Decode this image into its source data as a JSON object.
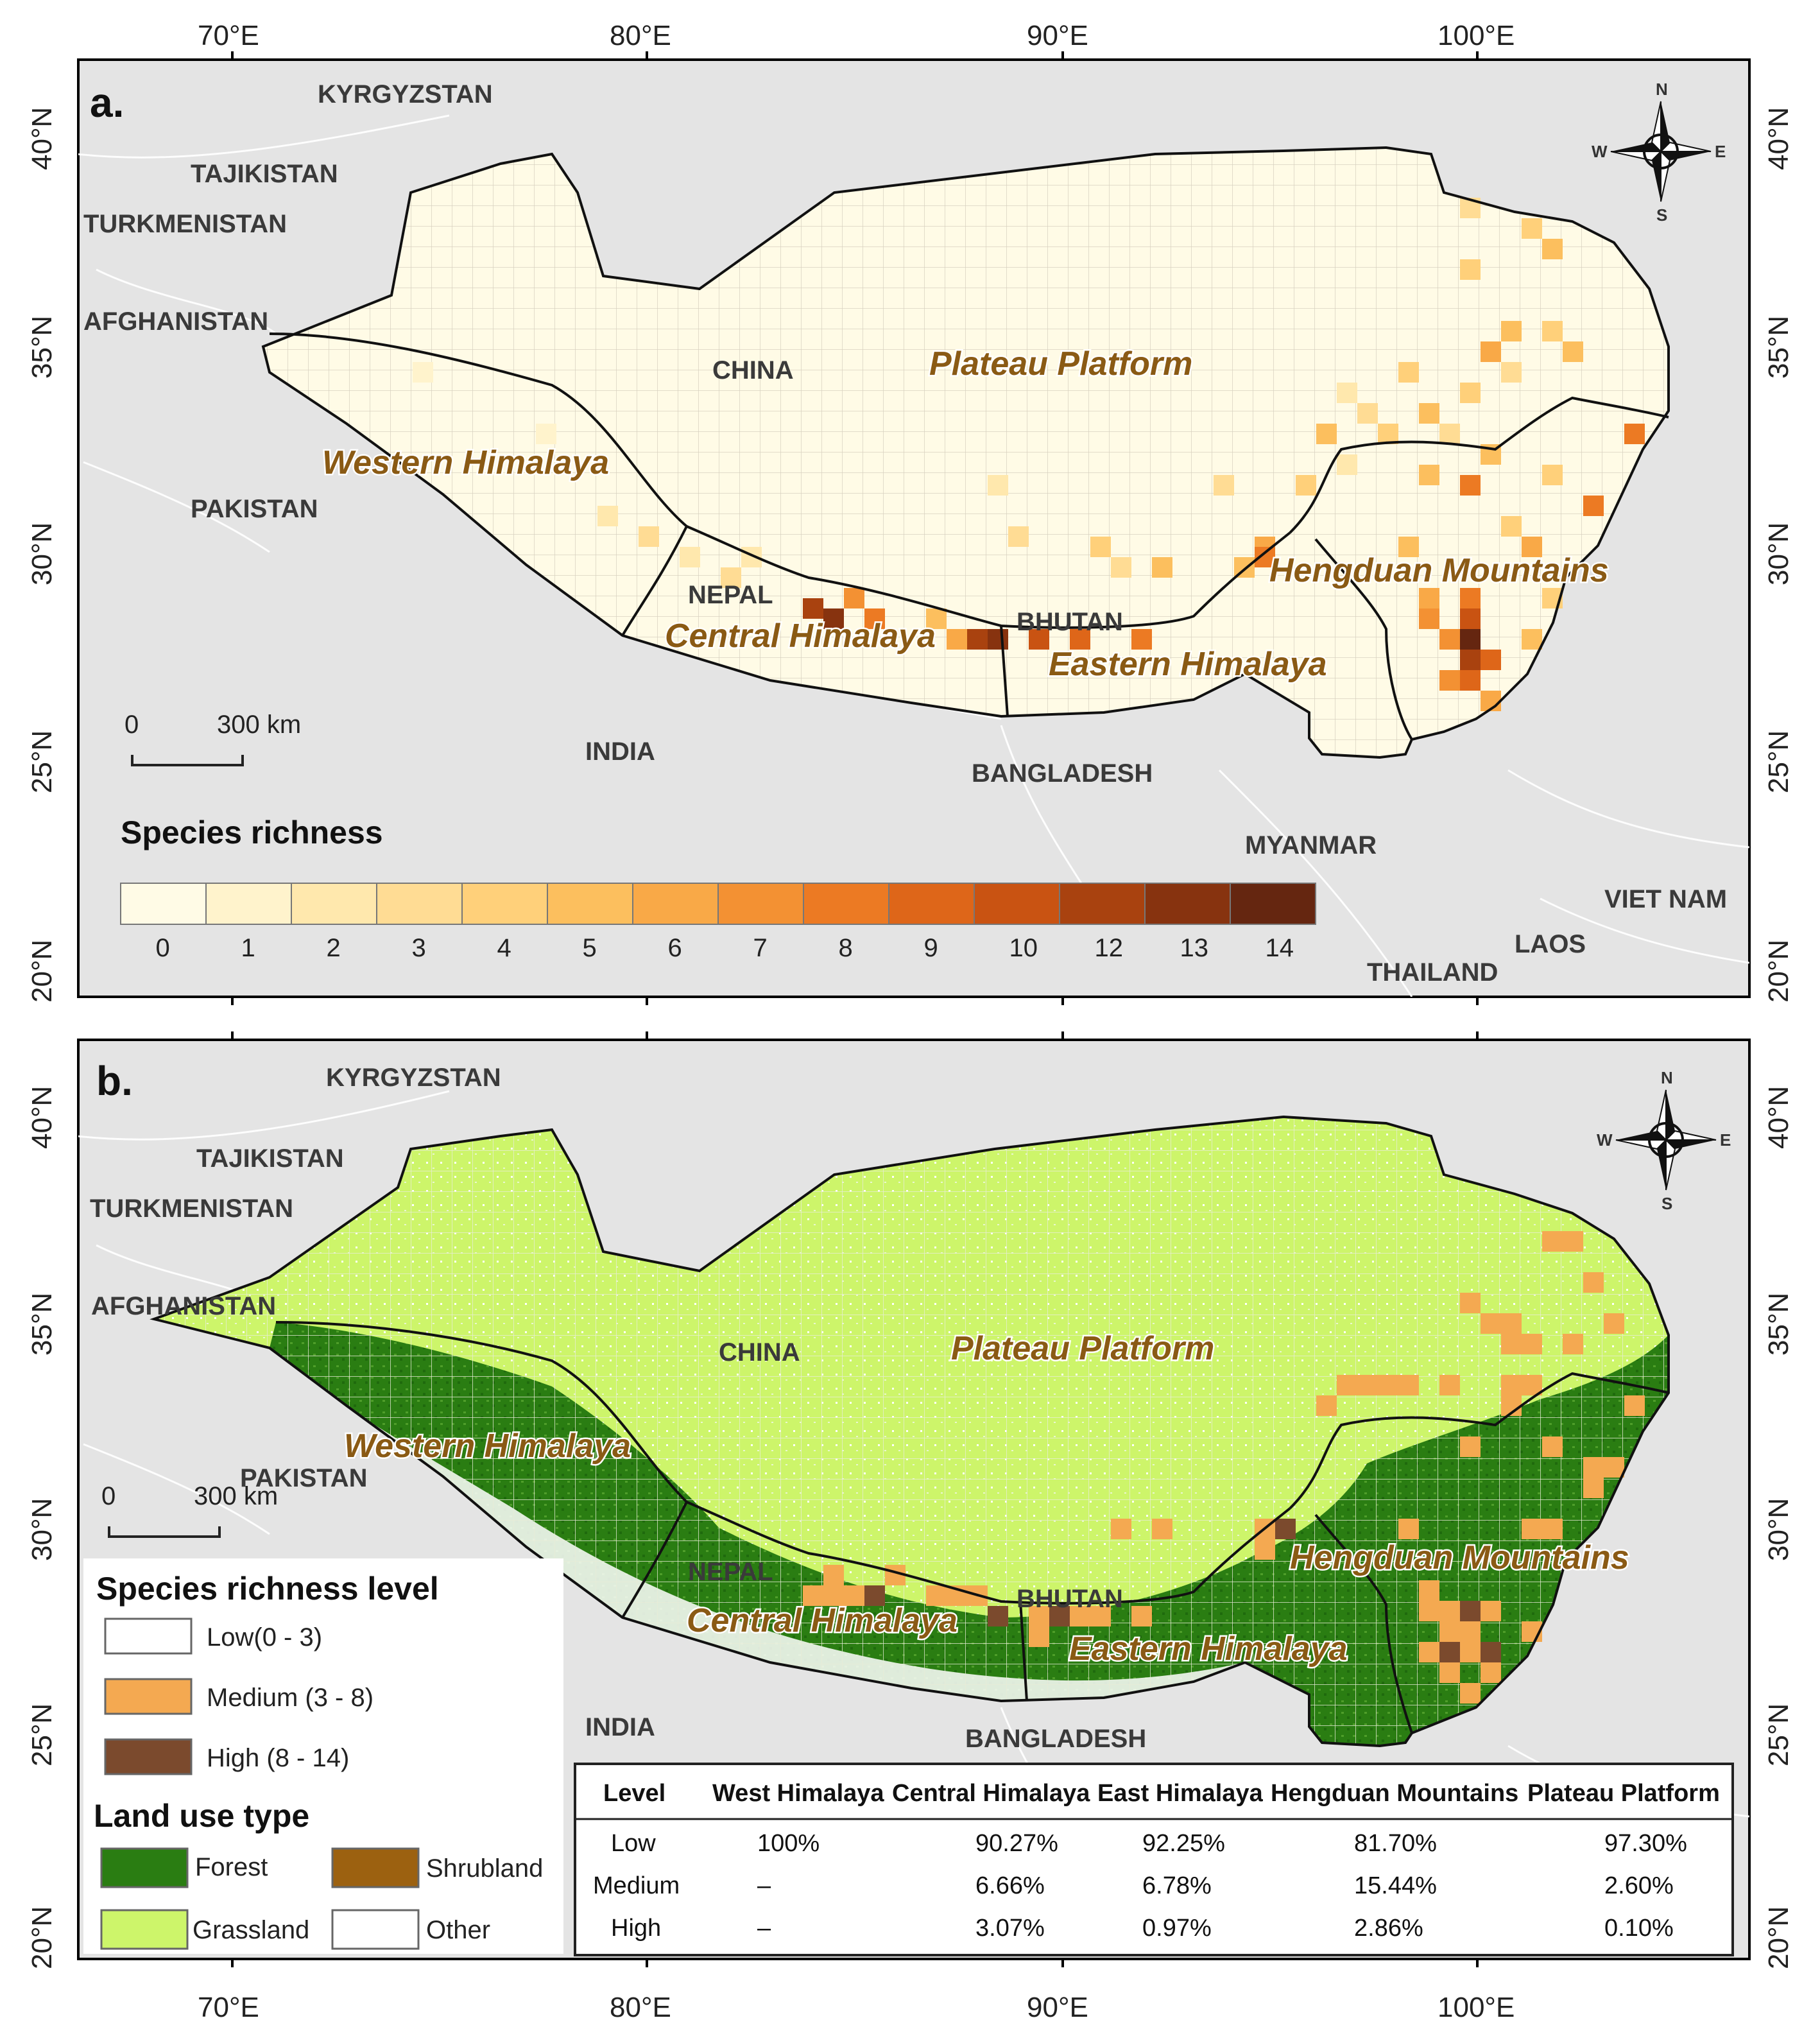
{
  "panels": [
    {
      "label": "a.",
      "legend_title": "Species richness",
      "legend_values": [
        "0",
        "1",
        "2",
        "3",
        "4",
        "5",
        "6",
        "7",
        "8",
        "9",
        "10",
        "12",
        "13",
        "14"
      ]
    },
    {
      "label": "b.",
      "richness_legend_title": "Species richness level",
      "richness_levels": [
        {
          "label": "Low(0 - 3)",
          "color": "#ffffff"
        },
        {
          "label": "Medium (3 - 8)",
          "color": "#f4a951"
        },
        {
          "label": "High (8 - 14)",
          "color": "#7b4a2d"
        }
      ],
      "landuse_title": "Land use type",
      "landuse": [
        {
          "label": "Forest",
          "color": "#2a7d12"
        },
        {
          "label": "Shrubland",
          "color": "#9c6110"
        },
        {
          "label": "Grassland",
          "color": "#cdf56a"
        },
        {
          "label": "Other",
          "color": "#ffffff"
        }
      ]
    }
  ],
  "top_axis_labels": [
    "70°E",
    "80°E",
    "90°E",
    "100°E"
  ],
  "bottom_axis_labels": [
    "70°E",
    "80°E",
    "90°E",
    "100°E"
  ],
  "lat_labels": [
    "40°N",
    "35°N",
    "30°N",
    "25°N",
    "20°N"
  ],
  "countries": {
    "kyrgyzstan": "KYRGYZSTAN",
    "tajikistan": "TAJIKISTAN",
    "turkmenistan": "TURKMENISTAN",
    "afghanistan": "AFGHANISTAN",
    "pakistan": "PAKISTAN",
    "china": "CHINA",
    "nepal": "NEPAL",
    "bhutan": "BHUTAN",
    "india": "INDIA",
    "bangladesh": "BANGLADESH",
    "myanmar": "MYANMAR",
    "viet_nam": "VIET NAM",
    "laos": "LAOS",
    "thailand": "THAILAND"
  },
  "regions": {
    "plateau": "Plateau Platform",
    "western": "Western Himalaya",
    "central": "Central Himalaya",
    "eastern": "Eastern Himalaya",
    "hengduan": "Hengduan Mountains"
  },
  "scale_bar": {
    "zero": "0",
    "dist": "300 km"
  },
  "compass": {
    "n": "N",
    "s": "S",
    "e": "E",
    "w": "W"
  },
  "table": {
    "headers": [
      "Level",
      "West Himalaya",
      "Central Himalaya",
      "East Himalaya",
      "Hengduan Mountains",
      "Plateau Platform"
    ],
    "rows": [
      [
        "Low",
        "100%",
        "90.27%",
        "92.25%",
        "81.70%",
        "97.30%"
      ],
      [
        "Medium",
        "–",
        "6.66%",
        "6.78%",
        "15.44%",
        "2.60%"
      ],
      [
        "High",
        "–",
        "3.07%",
        "0.97%",
        "2.86%",
        "0.10%"
      ]
    ]
  },
  "colors": {
    "richness_ramp": [
      "#fffbe6",
      "#fff3cc",
      "#ffe8ad",
      "#ffdc94",
      "#ffd07a",
      "#fcbf5e",
      "#f9a947",
      "#f39133",
      "#ec7a23",
      "#de6619",
      "#c95312",
      "#a9420f",
      "#87330f",
      "#652610"
    ],
    "background_land": "#e4e4e4",
    "study_area": "#fffbe6"
  }
}
